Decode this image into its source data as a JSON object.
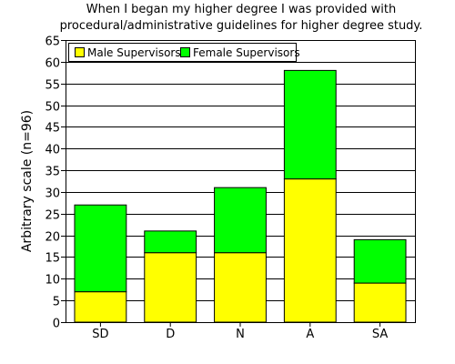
{
  "chart_data": {
    "type": "bar",
    "stacked": true,
    "title_line1": "When I began my higher degree I was provided with",
    "title_line2": "procedural/administrative guidelines for higher degree study.",
    "xlabel": "",
    "ylabel": "Arbitrary scale (n=96)",
    "categories": [
      "SD",
      "D",
      "N",
      "A",
      "SA"
    ],
    "series": [
      {
        "name": "Male Supervisors",
        "values": [
          7,
          16,
          16,
          33,
          9
        ],
        "color": "#ffff00"
      },
      {
        "name": "Female Supervisors",
        "values": [
          20,
          5,
          15,
          25,
          10
        ],
        "color": "#00ff00"
      }
    ],
    "ylim": [
      0,
      65
    ],
    "yticks": [
      0,
      5,
      10,
      15,
      20,
      25,
      30,
      35,
      40,
      45,
      50,
      55,
      60,
      65
    ],
    "grid": true,
    "legend_position": "top-left"
  }
}
